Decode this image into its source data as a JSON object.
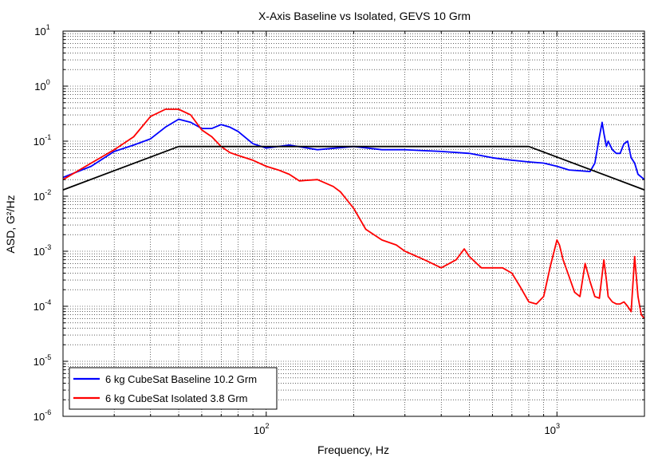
{
  "chart_data": {
    "type": "line",
    "title": "X-Axis Baseline vs Isolated, GEVS 10 Grm",
    "xlabel": "Frequency, Hz",
    "ylabel": "ASD, G²/Hz",
    "xscale": "log",
    "yscale": "log",
    "xlim": [
      20,
      2000
    ],
    "ylim": [
      1e-06,
      10
    ],
    "grid": true,
    "legend_position": "bottom-left",
    "x_ticks": [
      {
        "value": 100,
        "base": "10",
        "exp": "2"
      },
      {
        "value": 1000,
        "base": "10",
        "exp": "3"
      }
    ],
    "y_ticks": [
      {
        "value": 10,
        "base": "10",
        "exp": "1"
      },
      {
        "value": 1,
        "base": "10",
        "exp": "0"
      },
      {
        "value": 0.1,
        "base": "10",
        "exp": "-1"
      },
      {
        "value": 0.01,
        "base": "10",
        "exp": "-2"
      },
      {
        "value": 0.001,
        "base": "10",
        "exp": "-3"
      },
      {
        "value": 0.0001,
        "base": "10",
        "exp": "-4"
      },
      {
        "value": 1e-05,
        "base": "10",
        "exp": "-5"
      },
      {
        "value": 1e-06,
        "base": "10",
        "exp": "-6"
      }
    ],
    "series": [
      {
        "name": "6 kg CubeSat Baseline 10.2 Grm",
        "color": "#0000ff",
        "x": [
          20,
          25,
          30,
          35,
          40,
          45,
          50,
          55,
          60,
          65,
          70,
          75,
          80,
          90,
          100,
          120,
          150,
          200,
          250,
          300,
          400,
          500,
          600,
          700,
          800,
          900,
          1000,
          1100,
          1200,
          1300,
          1350,
          1400,
          1430,
          1450,
          1480,
          1500,
          1550,
          1600,
          1650,
          1700,
          1750,
          1800,
          1850,
          1900,
          2000
        ],
        "y": [
          0.022,
          0.035,
          0.065,
          0.085,
          0.11,
          0.18,
          0.25,
          0.22,
          0.17,
          0.17,
          0.2,
          0.18,
          0.15,
          0.09,
          0.075,
          0.085,
          0.07,
          0.08,
          0.07,
          0.07,
          0.065,
          0.06,
          0.05,
          0.045,
          0.042,
          0.04,
          0.035,
          0.03,
          0.029,
          0.028,
          0.04,
          0.12,
          0.22,
          0.14,
          0.08,
          0.1,
          0.07,
          0.06,
          0.06,
          0.09,
          0.1,
          0.05,
          0.04,
          0.025,
          0.02
        ]
      },
      {
        "name": "6 kg CubeSat Isolated 3.8 Grm",
        "color": "#ff0000",
        "x": [
          20,
          25,
          30,
          35,
          40,
          45,
          50,
          55,
          60,
          65,
          70,
          75,
          80,
          90,
          100,
          110,
          120,
          130,
          150,
          170,
          180,
          200,
          220,
          250,
          280,
          300,
          350,
          400,
          450,
          480,
          500,
          550,
          600,
          650,
          700,
          750,
          800,
          850,
          900,
          950,
          1000,
          1020,
          1050,
          1100,
          1150,
          1200,
          1250,
          1300,
          1350,
          1400,
          1450,
          1480,
          1500,
          1550,
          1600,
          1650,
          1700,
          1750,
          1800,
          1850,
          1900,
          1950,
          2000
        ],
        "y": [
          0.02,
          0.04,
          0.07,
          0.12,
          0.28,
          0.38,
          0.38,
          0.3,
          0.16,
          0.12,
          0.08,
          0.062,
          0.055,
          0.045,
          0.035,
          0.03,
          0.025,
          0.019,
          0.02,
          0.015,
          0.012,
          0.006,
          0.0025,
          0.0016,
          0.0013,
          0.001,
          0.0007,
          0.0005,
          0.0007,
          0.0011,
          0.0008,
          0.0005,
          0.0005,
          0.0005,
          0.0004,
          0.00022,
          0.00012,
          0.00011,
          0.00015,
          0.00055,
          0.0016,
          0.0013,
          0.0007,
          0.00035,
          0.00018,
          0.00015,
          0.0006,
          0.00028,
          0.00015,
          0.00014,
          0.0007,
          0.0003,
          0.00015,
          0.00012,
          0.00011,
          0.00011,
          0.00012,
          0.0001,
          8e-05,
          0.0008,
          0.00015,
          7e-05,
          6e-05
        ]
      },
      {
        "color": "#000000",
        "x": [
          20,
          50,
          800,
          2000
        ],
        "y": [
          0.013,
          0.08,
          0.08,
          0.013
        ]
      }
    ]
  }
}
